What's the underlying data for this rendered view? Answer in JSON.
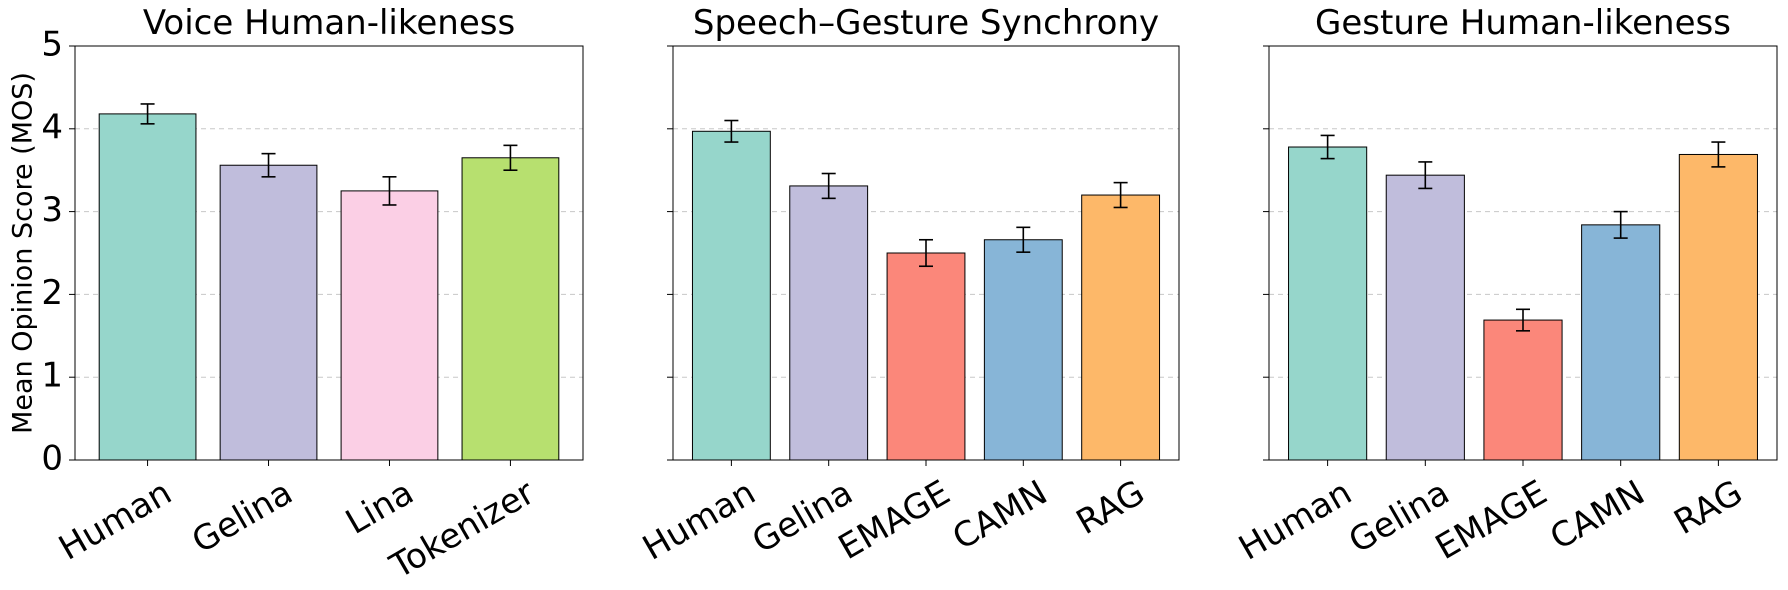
{
  "chart_data": [
    {
      "type": "bar",
      "title": "Voice Human-likeness",
      "ylabel": "Mean Opinion Score (MOS)",
      "categories": [
        "Human",
        "Gelina",
        "Lina",
        "Tokenizer"
      ],
      "values": [
        4.18,
        3.56,
        3.25,
        3.65
      ],
      "errors": [
        0.12,
        0.14,
        0.17,
        0.15
      ],
      "colors": [
        "#96d6cb",
        "#c0bddc",
        "#fbcfe5",
        "#b7e06f"
      ],
      "ylim": [
        0,
        5
      ],
      "yticks": [
        0,
        1,
        2,
        3,
        4,
        5
      ],
      "grid": true,
      "show_ytick_labels": true
    },
    {
      "type": "bar",
      "title": "Speech–Gesture Synchrony",
      "categories": [
        "Human",
        "Gelina",
        "EMAGE",
        "CAMN",
        "RAG"
      ],
      "values": [
        3.97,
        3.31,
        2.5,
        2.66,
        3.2
      ],
      "errors": [
        0.13,
        0.15,
        0.16,
        0.15,
        0.15
      ],
      "colors": [
        "#96d6cb",
        "#c0bddc",
        "#fb877a",
        "#87b5d7",
        "#fdb869"
      ],
      "ylim": [
        0,
        5
      ],
      "yticks": [
        0,
        1,
        2,
        3,
        4,
        5
      ],
      "grid": true,
      "show_ytick_labels": false
    },
    {
      "type": "bar",
      "title": "Gesture Human-likeness",
      "categories": [
        "Human",
        "Gelina",
        "EMAGE",
        "CAMN",
        "RAG"
      ],
      "values": [
        3.78,
        3.44,
        1.69,
        2.84,
        3.69
      ],
      "errors": [
        0.14,
        0.16,
        0.13,
        0.16,
        0.15
      ],
      "colors": [
        "#96d6cb",
        "#c0bddc",
        "#fb877a",
        "#87b5d7",
        "#fdb869"
      ],
      "ylim": [
        0,
        5
      ],
      "yticks": [
        0,
        1,
        2,
        3,
        4,
        5
      ],
      "grid": true,
      "show_ytick_labels": false
    }
  ]
}
